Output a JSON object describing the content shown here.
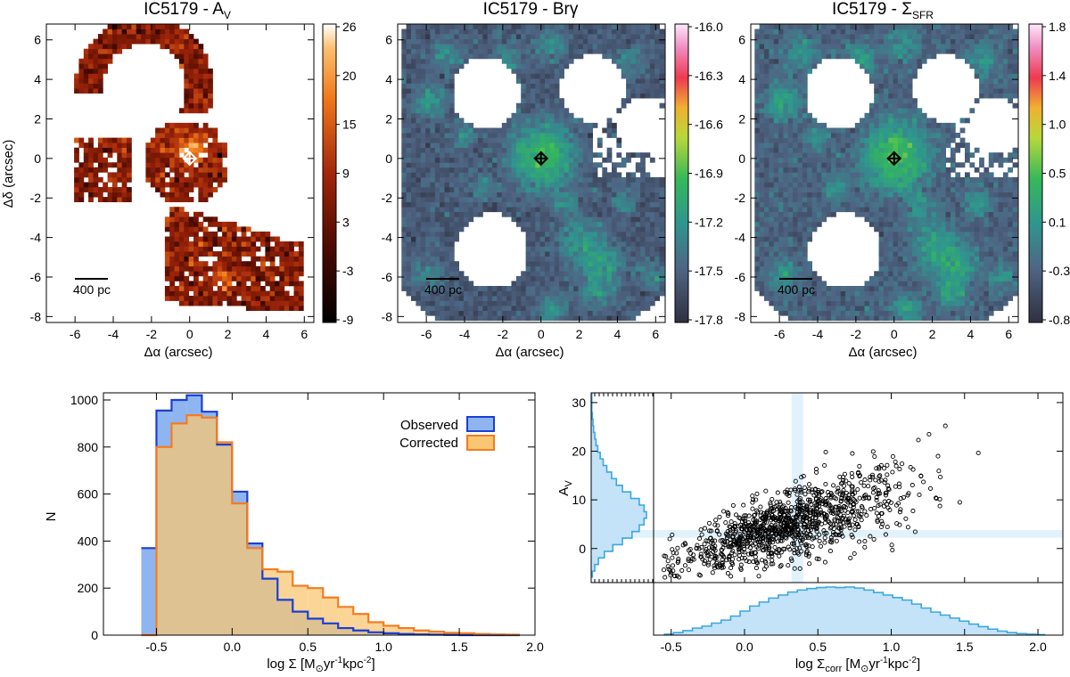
{
  "chart_data": [
    {
      "type": "heatmap",
      "id": "av",
      "title": "IC5179 - A",
      "title_sub": "V",
      "xlabel": "Δα (arcsec)",
      "ylabel": "Δδ (arcsec)",
      "xlim": [
        -7.5,
        6.5
      ],
      "ylim": [
        -8.3,
        6.8
      ],
      "xticks": [
        "-6",
        "-4",
        "-2",
        "0",
        "2",
        "4",
        "6"
      ],
      "yticks": [
        "6",
        "4",
        "2",
        "0",
        "-2",
        "-4",
        "-6",
        "-8"
      ],
      "colorbar_ticks": [
        "26",
        "20",
        "15",
        "9",
        "3",
        "-3",
        "-9"
      ],
      "colorbar_range": [
        -9,
        26
      ],
      "scale_bar_label": "400 pc",
      "nucleus_marker": [
        0,
        0
      ]
    },
    {
      "type": "heatmap",
      "id": "brg",
      "title": "IC5179 - Brγ",
      "title_sub": "",
      "xlabel": "Δα (arcsec)",
      "ylabel": "",
      "xlim": [
        -7.5,
        6.5
      ],
      "ylim": [
        -8.3,
        6.8
      ],
      "xticks": [
        "-6",
        "-4",
        "-2",
        "0",
        "2",
        "4",
        "6"
      ],
      "yticks": [
        "6",
        "4",
        "2",
        "0",
        "-2",
        "-4",
        "-6",
        "-8"
      ],
      "colorbar_ticks": [
        "-16.0",
        "-16.3",
        "-16.6",
        "-16.9",
        "-17.2",
        "-17.5",
        "-17.8"
      ],
      "colorbar_range": [
        -17.8,
        -16.0
      ],
      "scale_bar_label": "400 pc",
      "nucleus_marker": [
        0,
        0
      ]
    },
    {
      "type": "heatmap",
      "id": "sfr",
      "title": "IC5179 - Σ",
      "title_sub": "SFR",
      "xlabel": "Δα (arcsec)",
      "ylabel": "",
      "xlim": [
        -7.5,
        6.5
      ],
      "ylim": [
        -8.3,
        6.8
      ],
      "xticks": [
        "-6",
        "-4",
        "-2",
        "0",
        "2",
        "4",
        "6"
      ],
      "yticks": [
        "6",
        "4",
        "2",
        "0",
        "-2",
        "-4",
        "-6",
        "-8"
      ],
      "colorbar_ticks": [
        "1.8",
        "1.4",
        "1.0",
        "0.5",
        "0.1",
        "-0.3",
        "-0.8"
      ],
      "colorbar_range": [
        -0.8,
        1.8
      ],
      "scale_bar_label": "400 pc",
      "nucleus_marker": [
        0,
        0
      ]
    },
    {
      "type": "histogram",
      "id": "hist",
      "xlabel": "log Σ [M",
      "xlabel_sun": "⊙",
      "xlabel_rest": "yr",
      "xlabel_sup1": "-1",
      "xlabel_kpc": "kpc",
      "xlabel_sup2": "-2",
      "xlabel_close": "]",
      "ylabel": "N",
      "xlim": [
        -0.85,
        2.0
      ],
      "ylim": [
        0,
        1000
      ],
      "xticks": [
        "-0.5",
        "0.0",
        "0.5",
        "1.0",
        "1.5",
        "2.0"
      ],
      "yticks": [
        "0",
        "200",
        "400",
        "600",
        "800",
        "1000"
      ],
      "bin_edges": [
        -0.6,
        -0.5,
        -0.4,
        -0.3,
        -0.2,
        -0.1,
        0.0,
        0.1,
        0.2,
        0.3,
        0.4,
        0.5,
        0.6,
        0.7,
        0.8,
        0.9,
        1.0,
        1.1,
        1.2,
        1.3,
        1.4,
        1.5,
        1.6,
        1.7,
        1.8,
        1.9
      ],
      "series": [
        {
          "name": "Observed",
          "color": "#1a3fd6",
          "fill": "#8fb5f0",
          "values": [
            370,
            955,
            1000,
            1020,
            950,
            810,
            610,
            390,
            240,
            150,
            100,
            70,
            50,
            30,
            20,
            12,
            8,
            5,
            3,
            2,
            1,
            0,
            0,
            0,
            0
          ]
        },
        {
          "name": "Corrected",
          "color": "#f47c20",
          "fill": "#f8c773",
          "values": [
            0,
            800,
            900,
            935,
            925,
            820,
            560,
            370,
            280,
            270,
            210,
            200,
            160,
            120,
            90,
            55,
            40,
            30,
            20,
            15,
            10,
            8,
            5,
            3,
            2
          ]
        }
      ],
      "legend": [
        "Observed",
        "Corrected"
      ],
      "legend_position": "top-right"
    },
    {
      "type": "scatter",
      "id": "scatter",
      "ylabel": "A",
      "ylabel_sub": "V",
      "xlabel": "log Σ",
      "xlabel_sub": "corr",
      "xlabel_unit": " [M",
      "xlabel_sun": "⊙",
      "xlabel_rest": "yr",
      "xlabel_sup1": "-1",
      "xlabel_kpc": "kpc",
      "xlabel_sup2": "-2",
      "xlabel_close": "]",
      "xlim": [
        -0.62,
        2.17
      ],
      "ylim": [
        -7,
        32
      ],
      "xticks": [
        "-0.5",
        "0.0",
        "0.5",
        "1.0",
        "1.5",
        "2.0"
      ],
      "yticks": [
        "0",
        "10",
        "20",
        "30"
      ],
      "highlight_x_band": [
        0.32,
        0.4
      ],
      "highlight_y_band": [
        2.2,
        3.8
      ],
      "n_points": 1100,
      "trend": {
        "slope": 9.0,
        "intercept": 2.0,
        "scatter": 4.5
      },
      "x_marginal_counts": [
        2,
        5,
        9,
        14,
        18,
        24,
        30,
        38,
        48,
        58,
        66,
        74,
        80,
        86,
        90,
        93,
        95,
        96,
        95,
        96,
        94,
        90,
        85,
        80,
        75,
        70,
        62,
        54,
        46,
        40,
        34,
        28,
        22,
        17,
        12,
        8,
        5,
        3,
        2,
        1
      ],
      "y_marginal_counts": [
        2,
        6,
        12,
        22,
        36,
        52,
        68,
        80,
        88,
        92,
        88,
        80,
        66,
        52,
        42,
        34,
        26,
        20,
        15,
        11,
        8,
        6,
        4,
        3,
        2,
        1,
        1,
        1
      ]
    }
  ]
}
